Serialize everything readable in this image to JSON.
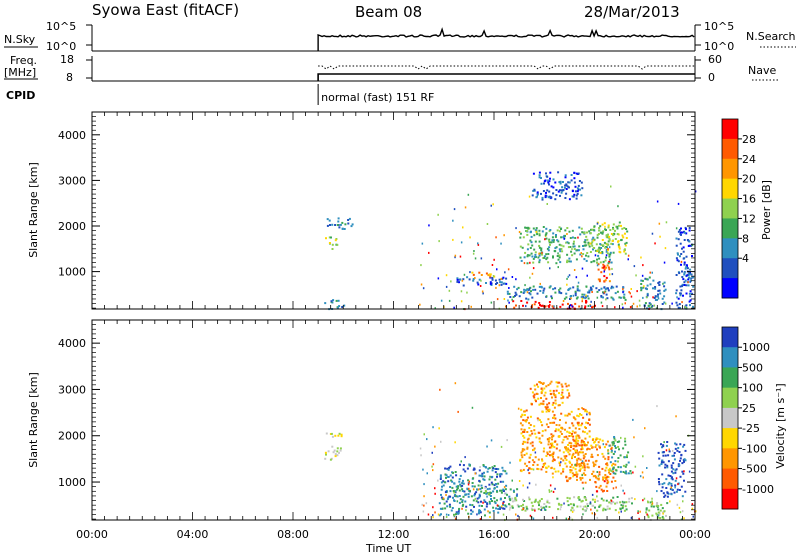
{
  "header": {
    "station": "Syowa East (fitACF)",
    "beam": "Beam 08",
    "date": "28/Mar/2013"
  },
  "top_panels": {
    "nsky_label": "N.Sky",
    "nsearch_label": "N.Search",
    "nsky_ticks": [
      "10^5",
      "10^0"
    ],
    "nsearch_ticks": [
      "10^5",
      "10^0"
    ],
    "freq_label_line1": "Freq.",
    "freq_label_line2": "[MHz]",
    "freq_ticks": [
      "18",
      "8"
    ],
    "nave_label": "Nave",
    "nave_ticks": [
      "60",
      "0"
    ],
    "cpid_label": "CPID",
    "cpid_text": "normal (fast) 151 RF",
    "data_start_hour": 9.0
  },
  "chart_data": [
    {
      "type": "heatmap",
      "name": "Power panel",
      "ylabel": "Slant Range [km]",
      "yticks": [
        "4000",
        "3000",
        "2000",
        "1000"
      ],
      "ytick_values": [
        4000,
        3000,
        2000,
        1000
      ],
      "ylim": [
        180,
        4500
      ],
      "xlim_hours": [
        0,
        24
      ],
      "colorbar_label": "Power [dB]",
      "colorbar_ticks": [
        "28",
        "24",
        "20",
        "16",
        "12",
        "8",
        "4"
      ],
      "colorbar_colors": [
        "#ff0000",
        "#ff5a00",
        "#ff9600",
        "#ffd700",
        "#8fd14f",
        "#3aa655",
        "#2f8fbf",
        "#1f4fbf",
        "#0000ff"
      ],
      "regions": [
        {
          "x": [
            9.2,
            9.8
          ],
          "y": [
            1500,
            1800
          ],
          "level": 4
        },
        {
          "x": [
            9.3,
            10.4
          ],
          "y": [
            1950,
            2200
          ],
          "level": 6
        },
        {
          "x": [
            9.1,
            10.0
          ],
          "y": [
            200,
            400
          ],
          "level": 6
        },
        {
          "x": [
            14.5,
            16.5
          ],
          "y": [
            700,
            900
          ],
          "level": 7
        },
        {
          "x": [
            15.0,
            16.0
          ],
          "y": [
            900,
            1000
          ],
          "level": 2
        },
        {
          "x": [
            16.7,
            18.4
          ],
          "y": [
            200,
            380
          ],
          "level": 0
        },
        {
          "x": [
            18.6,
            20.0
          ],
          "y": [
            200,
            380
          ],
          "level": 0
        },
        {
          "x": [
            20.1,
            20.6
          ],
          "y": [
            800,
            1300
          ],
          "level": 1
        },
        {
          "x": [
            16.5,
            21.2
          ],
          "y": [
            400,
            700
          ],
          "level": 6
        },
        {
          "x": [
            17.0,
            20.8
          ],
          "y": [
            1200,
            2000
          ],
          "level": 5
        },
        {
          "x": [
            19.8,
            21.3
          ],
          "y": [
            1400,
            2100
          ],
          "level": 4
        },
        {
          "x": [
            17.5,
            19.5
          ],
          "y": [
            2600,
            3200
          ],
          "level": 7
        },
        {
          "x": [
            21.8,
            22.8
          ],
          "y": [
            200,
            900
          ],
          "level": 6
        },
        {
          "x": [
            23.2,
            23.9
          ],
          "y": [
            200,
            2000
          ],
          "level": 7
        }
      ]
    },
    {
      "type": "heatmap",
      "name": "Velocity panel",
      "ylabel": "Slant Range [km]",
      "yticks": [
        "4000",
        "3000",
        "2000",
        "1000"
      ],
      "ytick_values": [
        4000,
        3000,
        2000,
        1000
      ],
      "ylim": [
        180,
        4500
      ],
      "xlim_hours": [
        0,
        24
      ],
      "colorbar_label": "Velocity [m s⁻¹]",
      "colorbar_ticks": [
        "1000",
        "500",
        "100",
        "25",
        "-25",
        "-100",
        "-500",
        "-1000"
      ],
      "colorbar_colors": [
        "#1f3fbf",
        "#2f8fbf",
        "#3aa655",
        "#8fd14f",
        "#c8c8c8",
        "#ffd700",
        "#ff9600",
        "#ff5a00",
        "#ff0000"
      ],
      "regions": [
        {
          "x": [
            9.2,
            9.9
          ],
          "y": [
            1500,
            1800
          ],
          "level": 4
        },
        {
          "x": [
            9.3,
            10.0
          ],
          "y": [
            1950,
            2100
          ],
          "level": 4
        },
        {
          "x": [
            13.8,
            16.5
          ],
          "y": [
            300,
            1400
          ],
          "level": 1
        },
        {
          "x": [
            14.3,
            17.0
          ],
          "y": [
            700,
            900
          ],
          "level": 2
        },
        {
          "x": [
            17.0,
            19.8
          ],
          "y": [
            1200,
            2600
          ],
          "level": 6
        },
        {
          "x": [
            18.8,
            20.8
          ],
          "y": [
            1000,
            2000
          ],
          "level": 6
        },
        {
          "x": [
            20.0,
            20.5
          ],
          "y": [
            800,
            1200
          ],
          "level": 7
        },
        {
          "x": [
            20.5,
            21.4
          ],
          "y": [
            1200,
            2000
          ],
          "level": 2
        },
        {
          "x": [
            16.5,
            21.5
          ],
          "y": [
            400,
            700
          ],
          "level": 3
        },
        {
          "x": [
            17.4,
            19.0
          ],
          "y": [
            2600,
            3200
          ],
          "level": 6
        },
        {
          "x": [
            22.5,
            23.6
          ],
          "y": [
            700,
            1900
          ],
          "level": 0
        },
        {
          "x": [
            22.0,
            23.0
          ],
          "y": [
            200,
            600
          ],
          "level": 3
        }
      ]
    }
  ],
  "xaxis": {
    "ticks": [
      "00:00",
      "04:00",
      "08:00",
      "12:00",
      "16:00",
      "20:00",
      "00:00"
    ],
    "tick_hours": [
      0,
      4,
      8,
      12,
      16,
      20,
      24
    ],
    "label": "Time UT"
  }
}
